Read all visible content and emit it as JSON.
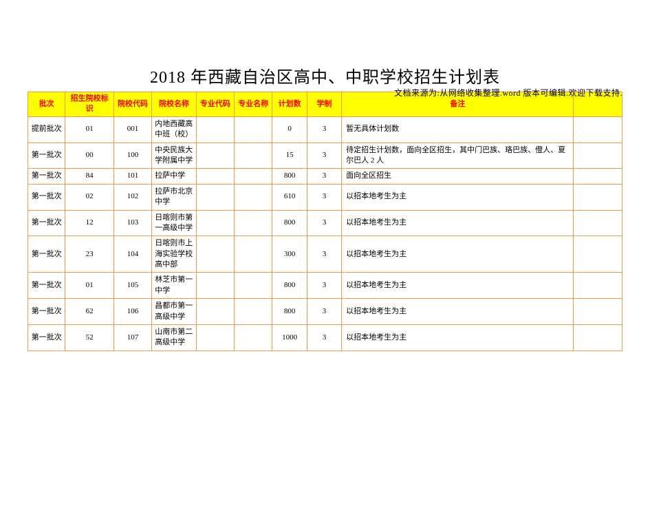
{
  "source_note": "文档来源为:从网络收集整理.word 版本可编辑.欢迎下载支持.",
  "title": "2018 年西藏自治区高中、中职学校招生计划表",
  "table": {
    "columns": [
      "批次",
      "招生院校标识",
      "院校代码",
      "院校名称",
      "专业代码",
      "专业名称",
      "计划数",
      "学制",
      "备注",
      ""
    ],
    "col_classes": [
      "c1",
      "c2",
      "c3",
      "c4",
      "c5",
      "c6",
      "c7",
      "c8",
      "c9",
      "c10"
    ],
    "header_bg": "#ffff00",
    "header_color": "#ff0000",
    "border_color": "#f79646",
    "rows": [
      {
        "batch": "提前批次",
        "id": "01",
        "code": "001",
        "name": "内地西藏高中班（校）",
        "major_code": "",
        "major_name": "",
        "plan": "0",
        "years": "3",
        "remark": "暂无具体计划数",
        "extra": ""
      },
      {
        "batch": "第一批次",
        "id": "00",
        "code": "100",
        "name": "中央民族大学附属中学",
        "major_code": "",
        "major_name": "",
        "plan": "15",
        "years": "3",
        "remark": "待定招生计划数，面向全区招生，其中门巴族、珞巴族、僜人、夏尔巴人 2 人",
        "extra": ""
      },
      {
        "batch": "第一批次",
        "id": "84",
        "code": "101",
        "name": "拉萨中学",
        "major_code": "",
        "major_name": "",
        "plan": "800",
        "years": "3",
        "remark": "面向全区招生",
        "extra": ""
      },
      {
        "batch": "第一批次",
        "id": "02",
        "code": "102",
        "name": "拉萨市北京中学",
        "major_code": "",
        "major_name": "",
        "plan": "610",
        "years": "3",
        "remark": "以招本地考生为主",
        "extra": ""
      },
      {
        "batch": "第一批次",
        "id": "12",
        "code": "103",
        "name": "日喀则市第一高级中学",
        "major_code": "",
        "major_name": "",
        "plan": "800",
        "years": "3",
        "remark": "以招本地考生为主",
        "extra": ""
      },
      {
        "batch": "第一批次",
        "id": "23",
        "code": "104",
        "name": "日喀则市上海实验学校高中部",
        "major_code": "",
        "major_name": "",
        "plan": "300",
        "years": "3",
        "remark": "以招本地考生为主",
        "extra": ""
      },
      {
        "batch": "第一批次",
        "id": "01",
        "code": "105",
        "name": "林芝市第一中学",
        "major_code": "",
        "major_name": "",
        "plan": "800",
        "years": "3",
        "remark": "以招本地考生为主",
        "extra": ""
      },
      {
        "batch": "第一批次",
        "id": "62",
        "code": "106",
        "name": "昌都市第一高级中学",
        "major_code": "",
        "major_name": "",
        "plan": "800",
        "years": "3",
        "remark": "以招本地考生为主",
        "extra": ""
      },
      {
        "batch": "第一批次",
        "id": "52",
        "code": "107",
        "name": "山南市第二高级中学",
        "major_code": "",
        "major_name": "",
        "plan": "1000",
        "years": "3",
        "remark": "以招本地考生为主",
        "extra": ""
      }
    ]
  }
}
